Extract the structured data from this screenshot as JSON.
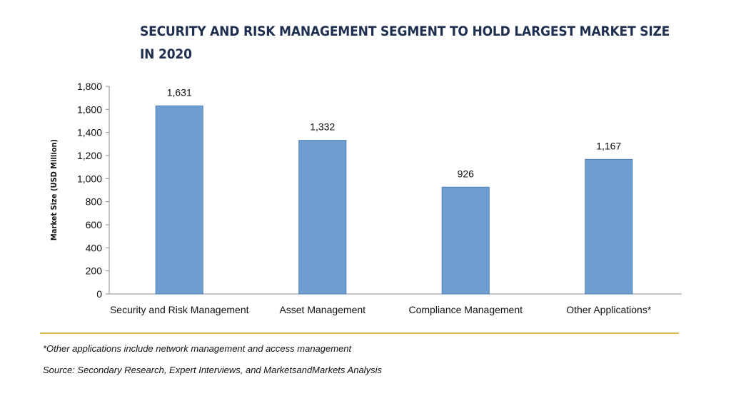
{
  "chart_data": {
    "type": "bar",
    "title_lines": [
      "SECURITY AND RISK MANAGEMENT SEGMENT TO HOLD LARGEST MARKET SIZE",
      "IN 2020"
    ],
    "ylabel": "Market Size (USD Million)",
    "xlabel": "",
    "ylim": [
      0,
      1800
    ],
    "yticks": [
      "0",
      "200",
      "400",
      "600",
      "800",
      "1,000",
      "1,200",
      "1,400",
      "1,600",
      "1,800"
    ],
    "ytick_values": [
      0,
      200,
      400,
      600,
      800,
      1000,
      1200,
      1400,
      1600,
      1800
    ],
    "categories": [
      "Security and Risk Management",
      "Asset Management",
      "Compliance Management",
      "Other Applications*"
    ],
    "values": [
      1631,
      1332,
      926,
      1167
    ],
    "data_labels": [
      "1,631",
      "1,332",
      "926",
      "1,167"
    ],
    "bar_color": "#6e9fd0",
    "bar_edge_color": "#4f7fb5",
    "grid": false,
    "legend": "none"
  },
  "footnotes": {
    "note": "*Other applications include network management and access management",
    "source": "Source: Secondary Research, Expert Interviews, and MarketsandMarkets Analysis"
  },
  "colors": {
    "title": "#1f2f4f",
    "divider": "#d9b74a"
  }
}
